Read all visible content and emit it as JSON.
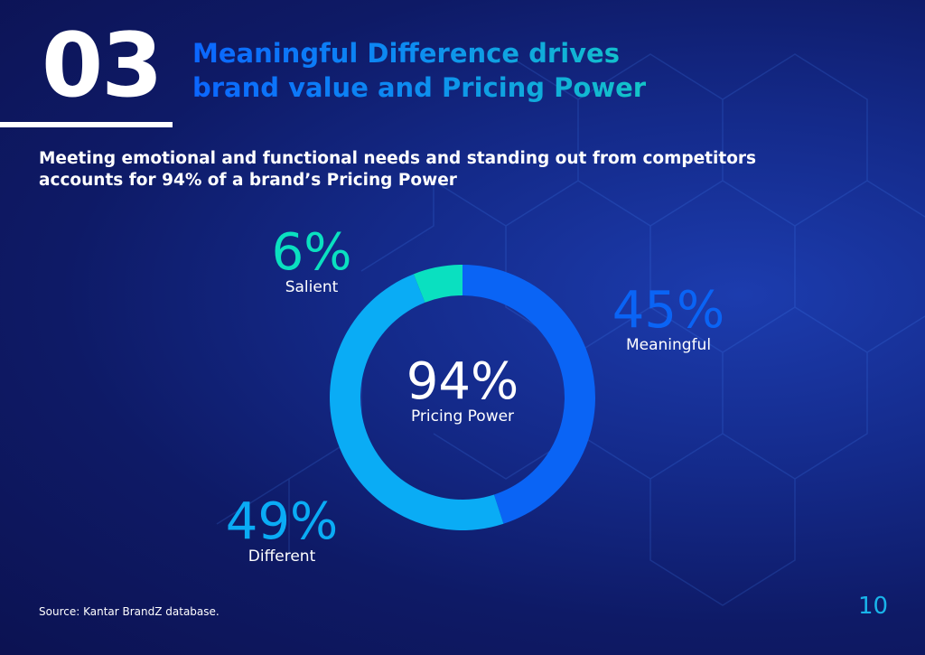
{
  "header": {
    "number": "03",
    "title_line1": "Meaningful Difference drives",
    "title_line2": "brand value and Pricing Power"
  },
  "subtitle_line1": "Meeting emotional and functional needs and standing out from competitors",
  "subtitle_line2": "accounts for 94% of a brand’s Pricing Power",
  "chart_data": {
    "type": "pie",
    "donut": true,
    "center_value": "94%",
    "center_label": "Pricing Power",
    "slices": [
      {
        "name": "Meaningful",
        "value": 45,
        "label": "45%",
        "color": "#0a64f5"
      },
      {
        "name": "Different",
        "value": 49,
        "label": "49%",
        "color": "#0aacf5"
      },
      {
        "name": "Salient",
        "value": 6,
        "label": "6%",
        "color": "#0ae0c0"
      }
    ]
  },
  "footer": {
    "source": "Source: Kantar BrandZ database.",
    "page": "10"
  }
}
